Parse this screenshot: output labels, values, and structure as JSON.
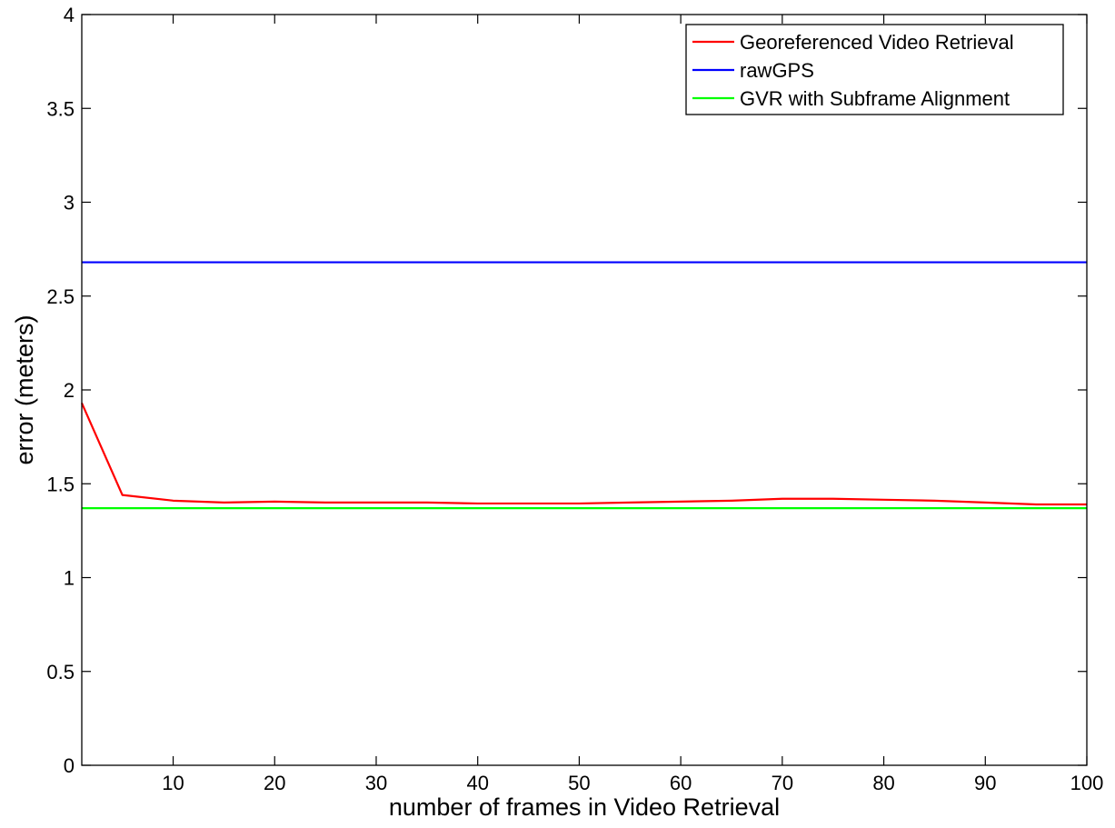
{
  "chart_data": {
    "type": "line",
    "title": "",
    "xlabel": "number of frames in Video Retrieval",
    "ylabel": "error (meters)",
    "xlim": [
      1,
      100
    ],
    "ylim": [
      0,
      4
    ],
    "xticks": [
      10,
      20,
      30,
      40,
      50,
      60,
      70,
      80,
      90,
      100
    ],
    "yticks": [
      0,
      0.5,
      1,
      1.5,
      2,
      2.5,
      3,
      3.5,
      4
    ],
    "xtick_labels": [
      "10",
      "20",
      "30",
      "40",
      "50",
      "60",
      "70",
      "80",
      "90",
      "100"
    ],
    "ytick_labels": [
      "0",
      "0.5",
      "1",
      "1.5",
      "2",
      "2.5",
      "3",
      "3.5",
      "4"
    ],
    "grid": false,
    "legend_position": "top-right",
    "series": [
      {
        "name": "Georeferenced Video Retrieval",
        "color": "#ff0000",
        "x": [
          1,
          5,
          10,
          15,
          20,
          25,
          30,
          35,
          40,
          45,
          50,
          55,
          60,
          65,
          70,
          75,
          80,
          85,
          90,
          95,
          100
        ],
        "y": [
          1.93,
          1.44,
          1.41,
          1.4,
          1.405,
          1.4,
          1.4,
          1.4,
          1.395,
          1.395,
          1.395,
          1.4,
          1.405,
          1.41,
          1.42,
          1.42,
          1.415,
          1.41,
          1.4,
          1.39,
          1.39
        ]
      },
      {
        "name": "rawGPS",
        "color": "#0000ff",
        "x": [
          1,
          100
        ],
        "y": [
          2.68,
          2.68
        ]
      },
      {
        "name": "GVR with Subframe Alignment",
        "color": "#00ff00",
        "x": [
          1,
          100
        ],
        "y": [
          1.37,
          1.37
        ]
      }
    ]
  }
}
